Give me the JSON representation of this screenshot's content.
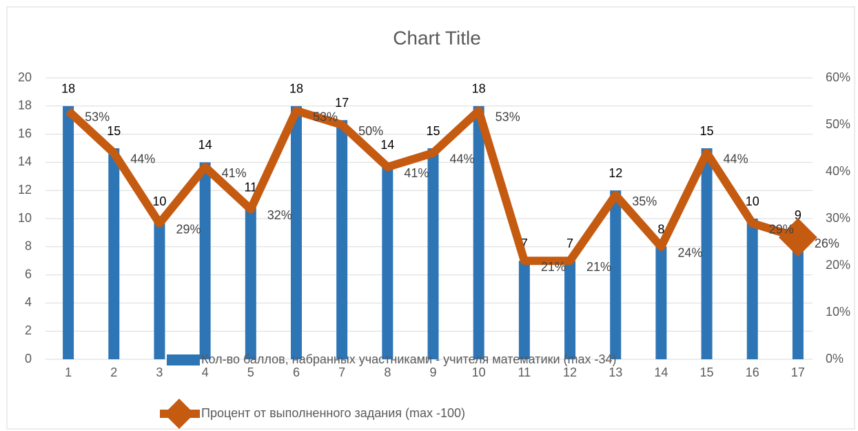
{
  "chart_data": {
    "type": "bar-line",
    "title": "Chart Title",
    "categories": [
      "1",
      "2",
      "3",
      "4",
      "5",
      "6",
      "7",
      "8",
      "9",
      "10",
      "11",
      "12",
      "13",
      "14",
      "15",
      "16",
      "17"
    ],
    "series": [
      {
        "name": "Кол-во баллов, набранных участниками - учителя математики (max -34)",
        "type": "bar",
        "color": "#2e75b6",
        "values": [
          18,
          15,
          10,
          14,
          11,
          18,
          17,
          14,
          15,
          18,
          7,
          7,
          12,
          8,
          15,
          10,
          9
        ]
      },
      {
        "name": "Процент от выполненного задания (max -100)",
        "type": "line",
        "axis": "y2",
        "color": "#c55a11",
        "values": [
          53,
          44,
          29,
          41,
          32,
          53,
          50,
          41,
          44,
          53,
          21,
          21,
          35,
          24,
          44,
          29,
          26
        ],
        "value_labels": [
          "53%",
          "44%",
          "29%",
          "41%",
          "32%",
          "53%",
          "50%",
          "41%",
          "44%",
          "53%",
          "21%",
          "21%",
          "35%",
          "24%",
          "44%",
          "29%",
          "26%"
        ]
      }
    ],
    "ylim": [
      0,
      20
    ],
    "yticks": [
      0,
      2,
      4,
      6,
      8,
      10,
      12,
      14,
      16,
      18,
      20
    ],
    "y2lim": [
      0,
      60
    ],
    "y2ticks": [
      {
        "value": 0,
        "label": "0%"
      },
      {
        "value": 10,
        "label": "10%"
      },
      {
        "value": 20,
        "label": "20%"
      },
      {
        "value": 30,
        "label": "30%"
      },
      {
        "value": 40,
        "label": "40%"
      },
      {
        "value": 50,
        "label": "50%"
      },
      {
        "value": 60,
        "label": "60%"
      }
    ],
    "grid": true
  }
}
